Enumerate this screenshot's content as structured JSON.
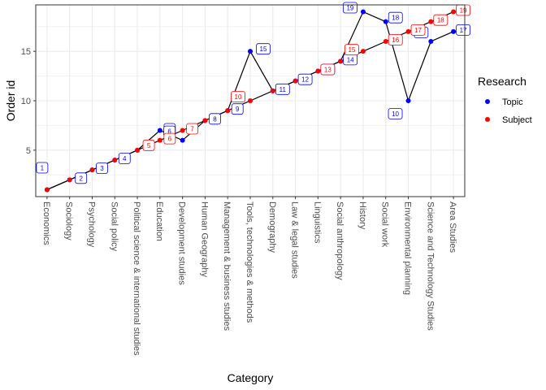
{
  "chart_data": {
    "type": "line",
    "xlabel": "Category",
    "ylabel": "Order id",
    "ylim": [
      0.3,
      19.7
    ],
    "yticks": [
      5,
      10,
      15
    ],
    "grid": true,
    "legend_position": "right",
    "legend": {
      "title": "Research",
      "entries": [
        {
          "name": "Topic",
          "color": "#0000ff"
        },
        {
          "name": "Subject",
          "color": "#ff0000"
        }
      ]
    },
    "categories": [
      "Economics",
      "Sociology",
      "Psychology",
      "Social policy",
      "Political science & international studies",
      "Education",
      "Development studies",
      "Human Geography",
      "Management & business studies",
      "Tools, technologies & methods",
      "Demography",
      "Law & legal studies",
      "Linguistics",
      "Social anthropology",
      "History",
      "Social work",
      "Environmental planning",
      "Science and Technology Studies",
      "Area Studies"
    ],
    "series": [
      {
        "name": "Topic",
        "color": "#0000ff",
        "values": [
          1,
          2,
          3,
          4,
          5,
          7,
          6,
          8,
          9,
          15,
          11,
          12,
          13,
          14,
          19,
          18,
          10,
          16,
          17
        ]
      },
      {
        "name": "Subject",
        "color": "#ff0000",
        "values": [
          1,
          2,
          3,
          4,
          5,
          6,
          7,
          8,
          9,
          10,
          11,
          12,
          13,
          14,
          15,
          16,
          17,
          18,
          19
        ]
      }
    ]
  }
}
